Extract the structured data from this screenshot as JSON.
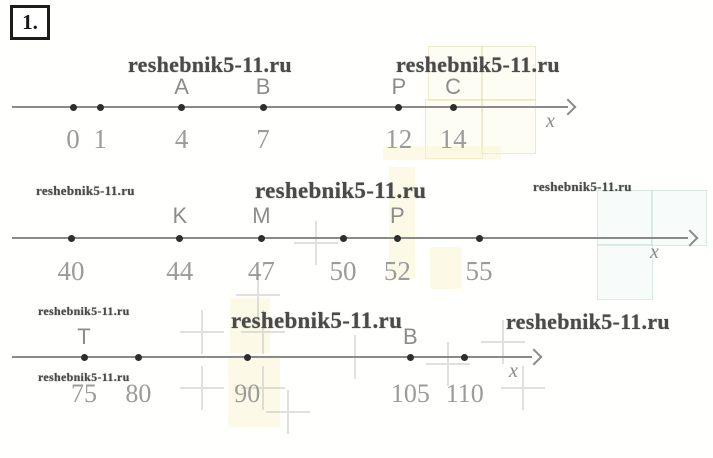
{
  "problem_number": "1.",
  "watermark_text": "reshebnik5-11.ru",
  "colors": {
    "axis": "#8a8a8a",
    "point_dot": "#2e2e2e",
    "letter_label": "#8c8c8c",
    "number_label": "#9b9b9b",
    "watermark": "#4a4a4a"
  },
  "chart_data": [
    {
      "type": "number_line",
      "axis_label": "x",
      "arrow": "right",
      "points": [
        {
          "value": 0
        },
        {
          "value": 1
        },
        {
          "value": 4,
          "letter": "A"
        },
        {
          "value": 7,
          "letter": "B"
        },
        {
          "value": 12,
          "letter": "P"
        },
        {
          "value": 14,
          "letter": "C"
        }
      ]
    },
    {
      "type": "number_line",
      "axis_label": "x",
      "arrow": "right",
      "points": [
        {
          "value": 40
        },
        {
          "value": 44,
          "letter": "K"
        },
        {
          "value": 47,
          "letter": "M"
        },
        {
          "value": 50
        },
        {
          "value": 52,
          "letter": "P"
        },
        {
          "value": 55
        }
      ]
    },
    {
      "type": "number_line",
      "axis_label": "x",
      "arrow": "right",
      "points": [
        {
          "value": 75,
          "letter": "T"
        },
        {
          "value": 80
        },
        {
          "value": 90
        },
        {
          "value": 105,
          "letter": "B"
        },
        {
          "value": 110
        }
      ]
    }
  ]
}
